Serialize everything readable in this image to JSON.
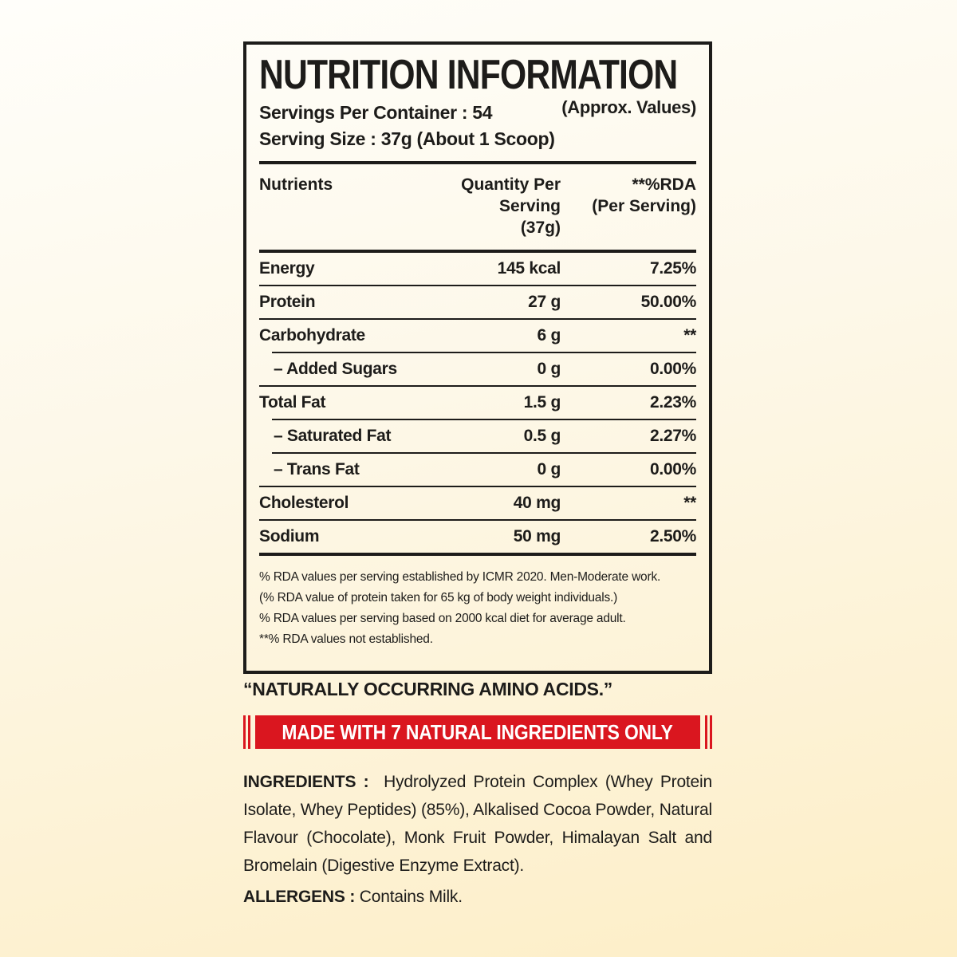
{
  "colors": {
    "ink": "#1d1c1a",
    "red": "#da161f",
    "background_top": "#fffefa",
    "background_bottom": "#fdeec6",
    "banner_text": "#ffffff"
  },
  "label": {
    "title": "NUTRITION INFORMATION",
    "approx_values": "(Approx. Values)",
    "servings_per_container": "Servings Per Container : 54",
    "serving_size": "Serving Size : 37g (About 1 Scoop)",
    "table": {
      "col_nutrients": "Nutrients",
      "col_quantity_line1": "Quantity Per Serving",
      "col_quantity_line2": "(37g)",
      "col_rda_line1": "**%RDA",
      "col_rda_line2": "(Per Serving)",
      "rows": [
        {
          "label": "Energy",
          "qty": "145 kcal",
          "rda": "7.25%",
          "indent": false,
          "divider": "full"
        },
        {
          "label": "Protein",
          "qty": "27 g",
          "rda": "50.00%",
          "indent": false,
          "divider": "full"
        },
        {
          "label": "Carbohydrate",
          "qty": "6 g",
          "rda": "**",
          "indent": false,
          "divider": "indent"
        },
        {
          "label": "– Added Sugars",
          "qty": "0 g",
          "rda": "0.00%",
          "indent": true,
          "divider": "full"
        },
        {
          "label": "Total Fat",
          "qty": "1.5 g",
          "rda": "2.23%",
          "indent": false,
          "divider": "indent"
        },
        {
          "label": "– Saturated Fat",
          "qty": "0.5 g",
          "rda": "2.27%",
          "indent": true,
          "divider": "indent"
        },
        {
          "label": "– Trans Fat",
          "qty": "0 g",
          "rda": "0.00%",
          "indent": true,
          "divider": "full"
        },
        {
          "label": "Cholesterol",
          "qty": "40 mg",
          "rda": "**",
          "indent": false,
          "divider": "full"
        },
        {
          "label": "Sodium",
          "qty": "50 mg",
          "rda": "2.50%",
          "indent": false,
          "divider": "none"
        }
      ]
    },
    "footnotes": [
      "% RDA values per serving established by ICMR 2020. Men-Moderate work.",
      "(% RDA value of protein taken for 65 kg of body weight individuals.)",
      "% RDA values per serving based on 2000 kcal diet for average adult.",
      "**% RDA values not established."
    ]
  },
  "bottom": {
    "quote": "“NATURALLY OCCURRING AMINO ACIDS.”",
    "banner": "MADE WITH 7 NATURAL INGREDIENTS ONLY",
    "ingredients_label": "INGREDIENTS :",
    "ingredients": "Hydrolyzed Protein Complex (Whey Protein Isolate, Whey Peptides) (85%), Alkalised Cocoa Powder, Natural Flavour (Chocolate), Monk Fruit Powder, Himalayan Salt and Bromelain (Digestive Enzyme Extract).",
    "allergens_label": "ALLERGENS :",
    "allergens": "Contains Milk."
  }
}
